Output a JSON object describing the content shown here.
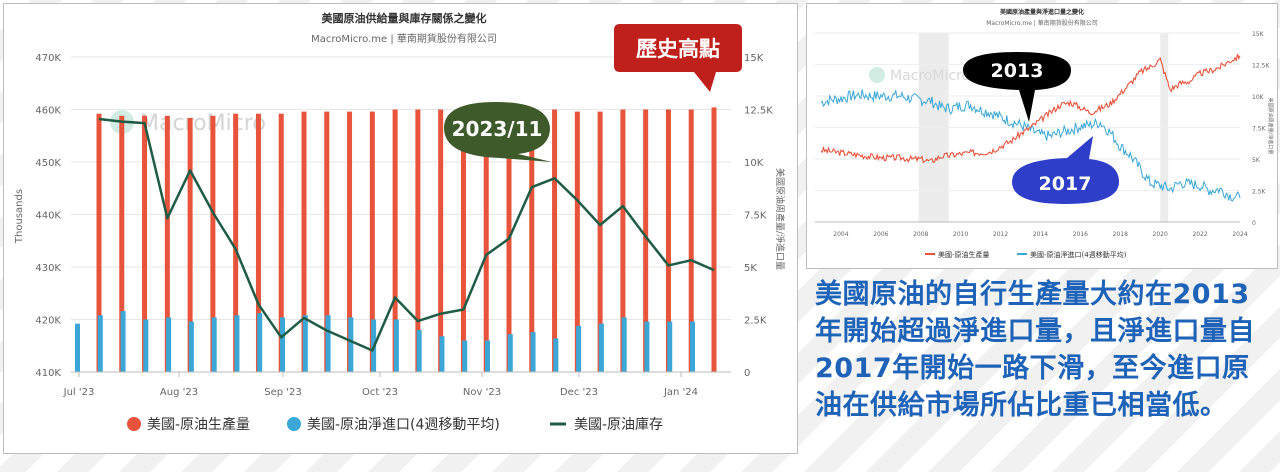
{
  "colors": {
    "production": "#e8533b",
    "imports": "#3aa7d6",
    "stock": "#1f5c45",
    "note": "#1f63b8",
    "callout_red": "#c0201b",
    "callout_green": "#3f5a2a",
    "callout_black": "#000000",
    "callout_blue": "#2e3ec9"
  },
  "chart_data": [
    {
      "type": "bar",
      "title": "美國原油供給量與庫存關係之變化",
      "subtitle": "MacroMicro.me | 華南期貨股份有限公司",
      "watermark": "MacroMicro",
      "ylabel_left": "Thousands",
      "ylabel_right": "美國原油周產量/淨進口量",
      "ylim_left": [
        410,
        470
      ],
      "yticks_left": [
        "410K",
        "420K",
        "430K",
        "440K",
        "450K",
        "460K",
        "470K"
      ],
      "ylim_right": [
        0,
        15000
      ],
      "yticks_right": [
        "0",
        "2.5K",
        "5K",
        "7.5K",
        "10K",
        "12.5K",
        "15K"
      ],
      "xticks": [
        "Jul '23",
        "Aug '23",
        "Sep '23",
        "Oct '23",
        "Nov '23",
        "Dec '23",
        "Jan '24"
      ],
      "x": [
        "2023-07-14",
        "2023-07-21",
        "2023-07-28",
        "2023-08-04",
        "2023-08-11",
        "2023-08-18",
        "2023-08-25",
        "2023-09-01",
        "2023-09-08",
        "2023-09-15",
        "2023-09-22",
        "2023-09-29",
        "2023-10-06",
        "2023-10-13",
        "2023-10-20",
        "2023-10-27",
        "2023-11-03",
        "2023-11-10",
        "2023-11-17",
        "2023-11-24",
        "2023-12-01",
        "2023-12-08",
        "2023-12-15",
        "2023-12-22",
        "2023-12-29",
        "2024-01-05",
        "2024-01-12",
        "2024-01-19"
      ],
      "series": [
        {
          "name": "美國-原油生產量",
          "kind": "bar",
          "axis": "right",
          "values": [
            12300,
            12200,
            12200,
            12200,
            12100,
            12200,
            12300,
            12300,
            12300,
            12400,
            12400,
            12400,
            12400,
            12500,
            12500,
            12500,
            12500,
            12500,
            12500,
            12500,
            12500,
            12400,
            12400,
            12500,
            12500,
            12500,
            12500,
            12600
          ]
        },
        {
          "name": "美國-原油淨進口(4週移動平均)",
          "kind": "bar",
          "axis": "right",
          "values": [
            2300,
            2700,
            2900,
            2500,
            2600,
            2400,
            2600,
            2700,
            2800,
            2600,
            2700,
            2700,
            2600,
            2500,
            2500,
            2000,
            1700,
            1500,
            1500,
            1800,
            1900,
            1600,
            2200,
            2300,
            2600,
            2400,
            2400,
            2400
          ]
        },
        {
          "name": "美國-原油庫存",
          "kind": "line",
          "axis": "left",
          "values": [
            458.2,
            457.7,
            457.4,
            439.3,
            448.4,
            440.4,
            433.4,
            422.9,
            416.6,
            420.3,
            417.9,
            416.0,
            414.1,
            424.2,
            419.7,
            421.1,
            421.9,
            432.3,
            435.4,
            445.2,
            446.9,
            442.7,
            438.0,
            441.6,
            435.8,
            430.3,
            431.3,
            429.4
          ]
        }
      ],
      "legend_position": "bottom",
      "annotations": [
        "歷史高點",
        "2023/11"
      ]
    },
    {
      "type": "line",
      "title": "美國原油產量與淨進口量之變化",
      "subtitle": "MacroMicro.me | 華南期貨股份有限公司",
      "watermark": "MacroMicro",
      "ylim": [
        0,
        15000
      ],
      "yticks": [
        "0",
        "2.5K",
        "5K",
        "7.5K",
        "10K",
        "12.5K",
        "15K"
      ],
      "ylabel": "美國原油周產量/淨進口量",
      "xticks": [
        "2004",
        "2006",
        "2008",
        "2010",
        "2012",
        "2014",
        "2016",
        "2018",
        "2020",
        "2022",
        "2024"
      ],
      "x": [
        2003.0,
        2003.5,
        2004.0,
        2004.5,
        2005.0,
        2005.5,
        2006.0,
        2006.5,
        2007.0,
        2007.5,
        2008.0,
        2008.5,
        2009.0,
        2009.5,
        2010.0,
        2010.5,
        2011.0,
        2011.5,
        2012.0,
        2012.5,
        2013.0,
        2013.5,
        2014.0,
        2014.5,
        2015.0,
        2015.5,
        2016.0,
        2016.5,
        2017.0,
        2017.5,
        2018.0,
        2018.5,
        2019.0,
        2019.5,
        2020.0,
        2020.5,
        2021.0,
        2021.5,
        2022.0,
        2022.5,
        2023.0,
        2023.5,
        2024.0
      ],
      "series": [
        {
          "name": "美國-原油生產量",
          "values": [
            5700,
            5600,
            5500,
            5400,
            5300,
            5200,
            5100,
            5100,
            5100,
            5000,
            5000,
            4800,
            5200,
            5300,
            5400,
            5500,
            5500,
            5600,
            6000,
            6400,
            7000,
            7500,
            8100,
            8700,
            9300,
            9500,
            9100,
            8700,
            9000,
            9400,
            10200,
            11000,
            11900,
            12300,
            12900,
            10500,
            11000,
            11200,
            11800,
            12000,
            12300,
            12800,
            13200
          ]
        },
        {
          "name": "美國-原油淨進口(4週移動平均)",
          "values": [
            9500,
            9700,
            9800,
            10000,
            10100,
            10000,
            10000,
            10000,
            10000,
            9800,
            9700,
            9600,
            9100,
            9000,
            9200,
            9300,
            8900,
            8700,
            8300,
            8000,
            7700,
            7300,
            6900,
            6800,
            7100,
            7300,
            7600,
            7700,
            7900,
            7100,
            6000,
            5300,
            4200,
            3100,
            2900,
            2600,
            3100,
            3000,
            2900,
            2500,
            2600,
            2100,
            1900
          ]
        }
      ],
      "shaded_periods": [
        [
          2007.9,
          2009.4
        ],
        [
          2020.0,
          2020.4
        ]
      ],
      "legend_position": "bottom",
      "annotations": [
        "2013",
        "2017"
      ]
    }
  ],
  "note_text": "美國原油的自行生產量大約在2013年開始超過淨進口量，且淨進口量自2017年開始一路下滑，至今進口原油在供給市場所佔比重已相當低。"
}
